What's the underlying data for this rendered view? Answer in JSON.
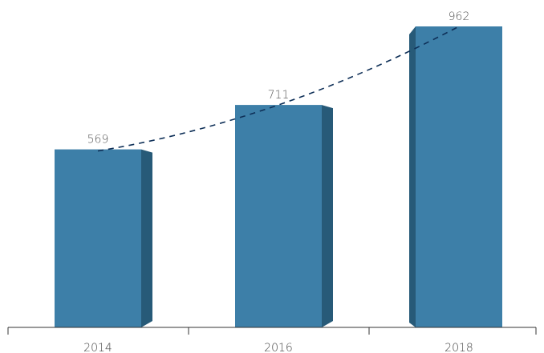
{
  "chart_data": {
    "type": "bar",
    "categories": [
      "2014",
      "2016",
      "2018"
    ],
    "values": [
      569,
      711,
      962
    ],
    "title": "",
    "xlabel": "",
    "ylabel": "",
    "ylim": [
      0,
      962
    ],
    "grid": false,
    "legend": "none",
    "trendline": "dashed",
    "colors": {
      "bar_front": "#3d7fa8",
      "bar_side": "#275a78",
      "trend": "#0e2f57",
      "axis": "#333333",
      "text": "#555555"
    }
  }
}
